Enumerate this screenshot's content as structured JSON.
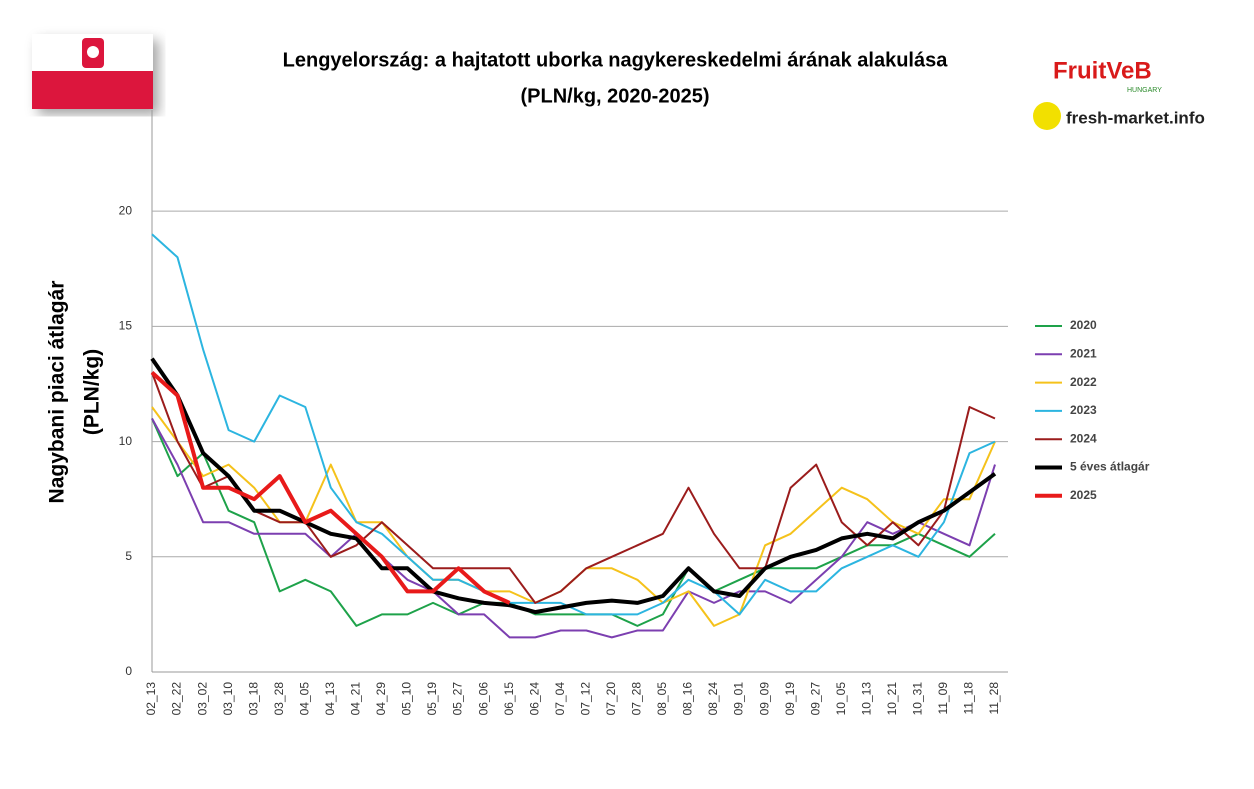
{
  "header": {
    "logo_main": "FruitVeB",
    "logo_sub": "HUNGARY",
    "logo2": "fresh-market.info"
  },
  "chart_data": {
    "type": "line",
    "title": "Lengyelország: a hajtatott uborka nagykereskedelmi árának alakulása",
    "subtitle": "(PLN/kg, 2020-2025)",
    "y_label": [
      "Nagybani piaci átlagár",
      "(PLN/kg)"
    ],
    "categories": [
      "02_13",
      "02_22",
      "03_02",
      "03_10",
      "03_18",
      "03_28",
      "04_05",
      "04_13",
      "04_21",
      "04_29",
      "05_10",
      "05_19",
      "05_27",
      "06_06",
      "06_15",
      "06_24",
      "07_04",
      "07_12",
      "07_20",
      "07_28",
      "08_05",
      "08_16",
      "08_24",
      "09_01",
      "09_09",
      "09_19",
      "09_27",
      "10_05",
      "10_13",
      "10_21",
      "10_31",
      "11_09",
      "11_18",
      "11_28"
    ],
    "ylim": [
      0,
      24
    ],
    "yticks": [
      0,
      5,
      10,
      15,
      20
    ],
    "grid": true,
    "legend": "right",
    "series": [
      {
        "name": "2020",
        "color": "#1ea24a",
        "width": 2,
        "values": [
          11,
          8.5,
          9.5,
          7,
          6.5,
          3.5,
          4,
          3.5,
          2,
          2.5,
          2.5,
          3,
          2.5,
          3,
          3,
          2.5,
          2.5,
          2.5,
          2.5,
          2,
          2.5,
          4.5,
          3.5,
          4,
          4.5,
          4.5,
          4.5,
          5,
          5.5,
          5.5,
          6,
          5.5,
          5,
          6
        ]
      },
      {
        "name": "2021",
        "color": "#7c3fb0",
        "width": 2,
        "values": [
          11,
          9,
          6.5,
          6.5,
          6,
          6,
          6,
          5,
          6,
          5,
          4,
          3.5,
          2.5,
          2.5,
          1.5,
          1.5,
          1.8,
          1.8,
          1.5,
          1.8,
          1.8,
          3.5,
          3,
          3.5,
          3.5,
          3,
          4,
          5,
          6.5,
          6,
          6.5,
          6,
          5.5,
          9
        ]
      },
      {
        "name": "2022",
        "color": "#f5c21b",
        "width": 2,
        "values": [
          11.5,
          10,
          8.5,
          9,
          8,
          6.5,
          6.5,
          9,
          6.5,
          6.5,
          5,
          4,
          4,
          3.5,
          3.5,
          3,
          3.5,
          4.5,
          4.5,
          4,
          3,
          3.5,
          2,
          2.5,
          5.5,
          6,
          7,
          8,
          7.5,
          6.5,
          6,
          7.5,
          7.5,
          10
        ]
      },
      {
        "name": "2023",
        "color": "#2cb5e0",
        "width": 2,
        "values": [
          19,
          18,
          14,
          10.5,
          10,
          12,
          11.5,
          8,
          6.5,
          6,
          5,
          4,
          4,
          3.5,
          3,
          3,
          3,
          2.5,
          2.5,
          2.5,
          3,
          4,
          3.5,
          2.5,
          4,
          3.5,
          3.5,
          4.5,
          5,
          5.5,
          5,
          6.5,
          9.5,
          10
        ]
      },
      {
        "name": "2024",
        "color": "#9b1c1c",
        "width": 2,
        "values": [
          13,
          10,
          8,
          8.5,
          7,
          6.5,
          6.5,
          5,
          5.5,
          6.5,
          5.5,
          4.5,
          4.5,
          4.5,
          4.5,
          3,
          3.5,
          4.5,
          5,
          5.5,
          6,
          8,
          6,
          4.5,
          4.5,
          8,
          9,
          6.5,
          5.5,
          6.5,
          5.5,
          7,
          11.5,
          11
        ]
      },
      {
        "name": "5 éves átlagár",
        "color": "#000000",
        "width": 4,
        "values": [
          13.6,
          12,
          9.5,
          8.5,
          7,
          7,
          6.5,
          6,
          5.8,
          4.5,
          4.5,
          3.5,
          3.2,
          3,
          2.9,
          2.6,
          2.8,
          3,
          3.1,
          3,
          3.3,
          4.5,
          3.5,
          3.3,
          4.5,
          5,
          5.3,
          5.8,
          6,
          5.8,
          6.5,
          7,
          7.8,
          8.6
        ]
      },
      {
        "name": "2025",
        "color": "#e81a1a",
        "width": 4,
        "values": [
          13,
          12,
          8,
          8,
          7.5,
          8.5,
          6.5,
          7,
          6,
          5,
          3.5,
          3.5,
          4.5,
          3.5,
          3,
          null,
          null,
          null,
          null,
          null,
          null,
          null,
          null,
          null,
          null,
          null,
          null,
          null,
          null,
          null,
          null,
          null,
          null,
          null
        ]
      }
    ]
  }
}
